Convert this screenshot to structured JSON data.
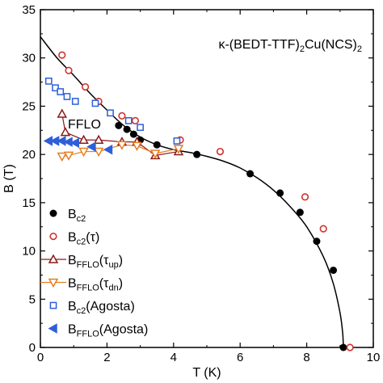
{
  "chart_data": {
    "type": "scatter",
    "title": "",
    "xlabel": "T (K)",
    "ylabel": "B (T)",
    "xlim": [
      0,
      10
    ],
    "ylim": [
      0,
      35
    ],
    "x_ticks": [
      "0",
      "2",
      "4",
      "6",
      "8",
      "10"
    ],
    "y_ticks": [
      "0",
      "5",
      "10",
      "15",
      "20",
      "25",
      "30",
      "35"
    ],
    "grid": false,
    "legend_position": "bottom-left",
    "annotations": {
      "compound": {
        "main": "κ-(BEDT-TTF)",
        "s1": "2",
        "mid": "Cu(NCS)",
        "s2": "2"
      },
      "phase_label": "FFLO"
    },
    "colors": {
      "black": "#000000",
      "red": "#d0342c",
      "darkred": "#8b1a1a",
      "orange": "#e87d1e",
      "blue": "#2f5fd8"
    },
    "series": [
      {
        "name": {
          "main": "B",
          "sub": "c2",
          "tail": ""
        },
        "marker": "filled-circle",
        "color": "#000000",
        "points": [
          [
            2.35,
            23.0
          ],
          [
            2.6,
            22.6
          ],
          [
            2.8,
            22.1
          ],
          [
            3.0,
            21.5
          ],
          [
            3.5,
            21.0
          ],
          [
            4.7,
            20.0
          ],
          [
            6.3,
            18.0
          ],
          [
            7.2,
            16.0
          ],
          [
            7.8,
            14.0
          ],
          [
            8.3,
            11.0
          ],
          [
            8.8,
            8.0
          ],
          [
            9.1,
            0.0
          ]
        ]
      },
      {
        "name": {
          "main": "B",
          "sub": "c2",
          "tail": "(τ)"
        },
        "marker": "open-circle",
        "color": "#d0342c",
        "points": [
          [
            0.65,
            30.3
          ],
          [
            0.85,
            28.7
          ],
          [
            1.35,
            27.0
          ],
          [
            1.75,
            25.5
          ],
          [
            2.45,
            24.0
          ],
          [
            2.85,
            23.5
          ],
          [
            4.2,
            21.5
          ],
          [
            5.4,
            20.3
          ],
          [
            7.95,
            15.6
          ],
          [
            8.5,
            12.3
          ],
          [
            9.3,
            0.0
          ]
        ]
      },
      {
        "name": {
          "main": "B",
          "sub": "FFLO",
          "tail": "(τ",
          "tail_sub": "up",
          "tail_end": ")"
        },
        "marker": "open-triangle-up",
        "color": "#8b1a1a",
        "line": true,
        "points": [
          [
            0.65,
            24.2
          ],
          [
            0.75,
            22.3
          ],
          [
            1.3,
            21.5
          ],
          [
            1.75,
            21.5
          ],
          [
            2.45,
            21.3
          ],
          [
            2.9,
            21.3
          ],
          [
            3.45,
            19.9
          ],
          [
            4.15,
            20.3
          ]
        ]
      },
      {
        "name": {
          "main": "B",
          "sub": "FFLO",
          "tail": "(τ",
          "tail_sub": "dn",
          "tail_end": ")"
        },
        "marker": "open-triangle-down",
        "color": "#e87d1e",
        "line": true,
        "points": [
          [
            0.65,
            19.8
          ],
          [
            0.85,
            19.9
          ],
          [
            1.3,
            20.3
          ],
          [
            1.75,
            20.3
          ],
          [
            2.45,
            21.0
          ],
          [
            2.9,
            20.9
          ],
          [
            3.45,
            20.1
          ],
          [
            4.15,
            20.6
          ]
        ]
      },
      {
        "name": {
          "main": "B",
          "sub": "c2",
          "tail": "(Agosta)"
        },
        "marker": "open-square",
        "color": "#2f5fd8",
        "points": [
          [
            0.25,
            27.6
          ],
          [
            0.45,
            26.9
          ],
          [
            0.6,
            26.5
          ],
          [
            0.8,
            26.0
          ],
          [
            1.05,
            25.5
          ],
          [
            1.65,
            25.3
          ],
          [
            2.1,
            24.3
          ],
          [
            2.65,
            23.5
          ],
          [
            3.0,
            22.8
          ],
          [
            4.1,
            21.4
          ]
        ]
      },
      {
        "name": {
          "main": "B",
          "sub": "FFLO",
          "tail": "(Agosta)"
        },
        "marker": "filled-triangle-left",
        "color": "#2f5fd8",
        "points": [
          [
            0.25,
            21.4
          ],
          [
            0.45,
            21.4
          ],
          [
            0.65,
            21.4
          ],
          [
            0.85,
            21.3
          ],
          [
            1.05,
            21.2
          ],
          [
            1.55,
            20.8
          ],
          [
            2.05,
            20.5
          ]
        ]
      }
    ],
    "fit_curve": {
      "color": "#000000",
      "points": [
        [
          0,
          32.2
        ],
        [
          0.5,
          30.0
        ],
        [
          1.0,
          28.2
        ],
        [
          1.5,
          26.3
        ],
        [
          2.0,
          24.6
        ],
        [
          2.5,
          23.0
        ],
        [
          3.0,
          21.8
        ],
        [
          3.5,
          21.0
        ],
        [
          4.0,
          20.5
        ],
        [
          4.5,
          20.2
        ],
        [
          5.0,
          19.8
        ],
        [
          5.5,
          19.3
        ],
        [
          6.0,
          18.6
        ],
        [
          6.5,
          17.6
        ],
        [
          7.0,
          16.3
        ],
        [
          7.5,
          14.6
        ],
        [
          8.0,
          12.5
        ],
        [
          8.5,
          9.4
        ],
        [
          8.8,
          6.6
        ],
        [
          9.0,
          3.6
        ],
        [
          9.08,
          1.5
        ],
        [
          9.1,
          0.0
        ]
      ]
    }
  }
}
